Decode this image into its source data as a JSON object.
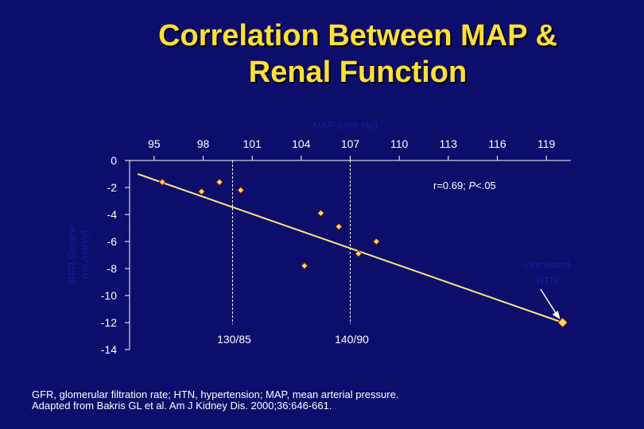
{
  "slide": {
    "title_line1": "Correlation Between MAP &",
    "title_line2": "Renal Function",
    "footnote_line1": "GFR, glomerular filtration rate; HTN, hypertension; MAP, mean arterial pressure.",
    "footnote_line2": "Adapted from Bakris GL et al. Am J Kidney Dis. 2000;36:646-661."
  },
  "colors": {
    "background": "#0d0d6b",
    "title": "#ffe033",
    "line": "#ffe680",
    "marker": "#ffd966",
    "marker_outline": "#7a1f00",
    "axis_title": "#1a1a9e",
    "text": "#ffffff"
  },
  "chart_data": {
    "type": "scatter",
    "xlabel": "MAP (mm Hg)",
    "ylabel_line1": "GFR Decline",
    "ylabel_line2": "(mL/min/y)",
    "x_ticks": [
      95,
      98,
      101,
      104,
      107,
      110,
      113,
      116,
      119
    ],
    "y_ticks": [
      0,
      -2,
      -4,
      -6,
      -8,
      -10,
      -12,
      -14
    ],
    "xlim": [
      93.5,
      120.5
    ],
    "ylim": [
      -14,
      0
    ],
    "points": [
      {
        "x": 95.5,
        "y": -1.6
      },
      {
        "x": 97.9,
        "y": -2.3
      },
      {
        "x": 99.0,
        "y": -1.6
      },
      {
        "x": 100.3,
        "y": -2.2
      },
      {
        "x": 104.2,
        "y": -7.8
      },
      {
        "x": 105.2,
        "y": -3.9
      },
      {
        "x": 106.3,
        "y": -4.9
      },
      {
        "x": 107.5,
        "y": -6.9
      },
      {
        "x": 108.6,
        "y": -6.0
      },
      {
        "x": 120.0,
        "y": -12.0
      }
    ],
    "regression": {
      "x": [
        94.0,
        120.0
      ],
      "y": [
        -1.0,
        -12.0
      ]
    },
    "reference_lines": [
      {
        "x": 99.8,
        "label": "130/85"
      },
      {
        "x": 107.0,
        "label": "140/90"
      }
    ],
    "annotation_stat": "r=0.69; P<.05",
    "callout": {
      "line1": "Untreated",
      "line2": "HTN",
      "x": 120.0,
      "y": -12.0
    }
  }
}
